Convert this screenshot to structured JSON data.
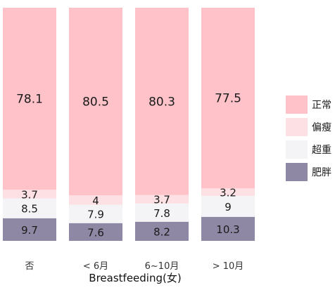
{
  "chart_data": {
    "type": "bar",
    "stacked": "percent",
    "title": "",
    "xlabel": "Breastfeeding(女)",
    "ylabel": "",
    "ylim": [
      0,
      100
    ],
    "grid": false,
    "legend_position": "right",
    "categories": [
      "否",
      "< 6月",
      "6~10月",
      "> 10月"
    ],
    "series": [
      {
        "name": "肥胖",
        "color": "#8e88a4",
        "values": [
          9.7,
          7.6,
          8.2,
          10.3
        ]
      },
      {
        "name": "超重",
        "color": "#f4f4f6",
        "values": [
          8.5,
          7.9,
          7.8,
          9
        ]
      },
      {
        "name": "偏瘦",
        "color": "#fde0e3",
        "values": [
          3.7,
          4,
          3.7,
          3.2
        ]
      },
      {
        "name": "正常",
        "color": "#fec2c8",
        "values": [
          78.1,
          80.5,
          80.3,
          77.5
        ]
      }
    ],
    "legend_order": [
      "正常",
      "偏瘦",
      "超重",
      "肥胖"
    ]
  }
}
